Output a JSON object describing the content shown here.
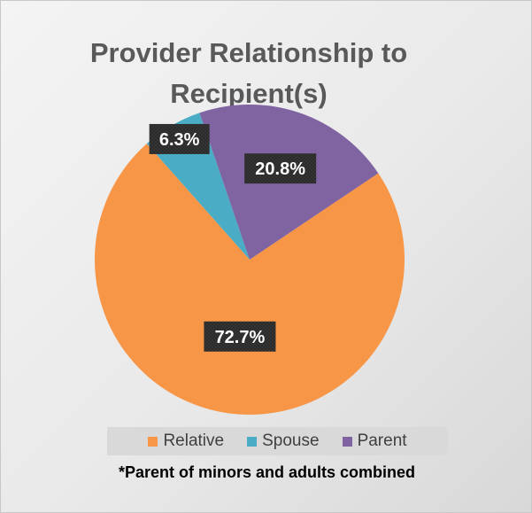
{
  "chart_data": {
    "type": "pie",
    "title_lines": [
      "Provider Relationship to",
      "Recipient(s)"
    ],
    "slices": [
      {
        "name": "Relative",
        "value": 72.7,
        "label": "72.7%",
        "color": "#F79646"
      },
      {
        "name": "Spouse",
        "value": 6.3,
        "label": "6.3%",
        "color": "#4BACC6"
      },
      {
        "name": "Parent",
        "value": 20.8,
        "label": "20.8%",
        "color": "#8064A2"
      }
    ],
    "legend_placement": "bottom",
    "footnote": "*Parent of minors and adults combined"
  }
}
